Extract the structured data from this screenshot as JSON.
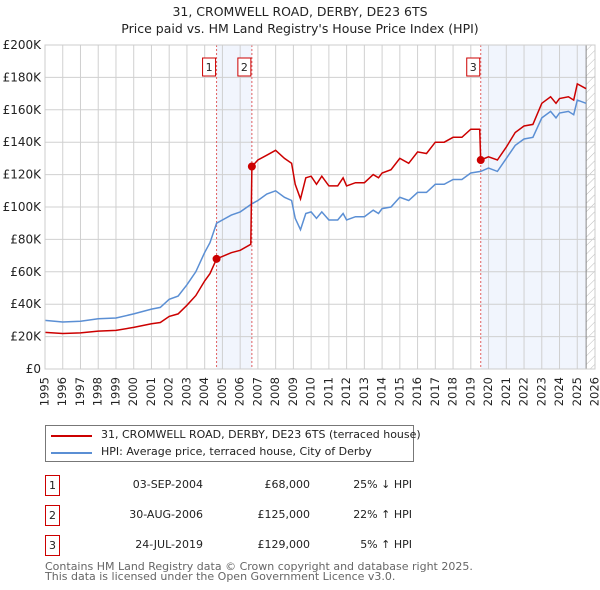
{
  "chart_data": {
    "type": "line",
    "title": "31, CROMWELL ROAD, DERBY, DE23 6TS",
    "subtitle": "Price paid vs. HM Land Registry's House Price Index (HPI)",
    "xlim": [
      1995,
      2026
    ],
    "ylim": [
      0,
      200000
    ],
    "x_ticks": [
      "1995",
      "1996",
      "1997",
      "1998",
      "1999",
      "2000",
      "2001",
      "2002",
      "2003",
      "2004",
      "2005",
      "2006",
      "2007",
      "2008",
      "2009",
      "2010",
      "2011",
      "2012",
      "2013",
      "2014",
      "2015",
      "2016",
      "2017",
      "2018",
      "2019",
      "2020",
      "2021",
      "2022",
      "2023",
      "2024",
      "2025",
      "2026"
    ],
    "y_ticks": [
      {
        "v": 0,
        "label": "£0"
      },
      {
        "v": 20000,
        "label": "£20K"
      },
      {
        "v": 40000,
        "label": "£40K"
      },
      {
        "v": 60000,
        "label": "£60K"
      },
      {
        "v": 80000,
        "label": "£80K"
      },
      {
        "v": 100000,
        "label": "£100K"
      },
      {
        "v": 120000,
        "label": "£120K"
      },
      {
        "v": 140000,
        "label": "£140K"
      },
      {
        "v": 160000,
        "label": "£160K"
      },
      {
        "v": 180000,
        "label": "£180K"
      },
      {
        "v": 200000,
        "label": "£200K"
      }
    ],
    "grid": true,
    "series": [
      {
        "name": "31, CROMWELL ROAD, DERBY, DE23 6TS (terraced house)",
        "color": "#cc0000",
        "x": [
          1995,
          1996,
          1997,
          1998,
          1999,
          2000,
          2001,
          2001.5,
          2002,
          2002.5,
          2003,
          2003.5,
          2004,
          2004.3,
          2004.67,
          2005,
          2005.5,
          2006,
          2006.6,
          2006.66,
          2007,
          2007.5,
          2008,
          2008.5,
          2008.9,
          2009.1,
          2009.4,
          2009.7,
          2010,
          2010.3,
          2010.6,
          2011,
          2011.5,
          2011.8,
          2012,
          2012.5,
          2013,
          2013.5,
          2013.8,
          2014,
          2014.5,
          2015,
          2015.5,
          2016,
          2016.5,
          2017,
          2017.5,
          2018,
          2018.5,
          2019,
          2019.5,
          2019.56,
          2020,
          2020.5,
          2021,
          2021.5,
          2022,
          2022.5,
          2023,
          2023.5,
          2023.8,
          2024,
          2024.5,
          2024.8,
          2025,
          2025.5
        ],
        "y": [
          22600,
          21900,
          22300,
          23400,
          23800,
          25700,
          27900,
          28700,
          32500,
          34000,
          39300,
          45300,
          54400,
          58900,
          68000,
          69500,
          71800,
          73300,
          77000,
          125000,
          129000,
          132000,
          135000,
          130000,
          127000,
          114000,
          105000,
          118000,
          119000,
          114000,
          119000,
          113000,
          113000,
          118000,
          113000,
          115000,
          115000,
          120000,
          118000,
          121000,
          123000,
          130000,
          127000,
          134000,
          133000,
          140000,
          140000,
          143000,
          143000,
          148000,
          148000,
          129000,
          131000,
          129000,
          137000,
          146000,
          150000,
          151000,
          164000,
          168000,
          164000,
          167000,
          168000,
          166000,
          176000,
          173000
        ]
      },
      {
        "name": "HPI: Average price, terraced house, City of Derby",
        "color": "#5b8fd4",
        "x": [
          1995,
          1996,
          1997,
          1998,
          1999,
          2000,
          2001,
          2001.5,
          2002,
          2002.5,
          2003,
          2003.5,
          2004,
          2004.3,
          2004.67,
          2005,
          2005.5,
          2006,
          2006.66,
          2007,
          2007.5,
          2008,
          2008.5,
          2008.9,
          2009.1,
          2009.4,
          2009.7,
          2010,
          2010.3,
          2010.6,
          2011,
          2011.5,
          2011.8,
          2012,
          2012.5,
          2013,
          2013.5,
          2013.8,
          2014,
          2014.5,
          2015,
          2015.5,
          2016,
          2016.5,
          2017,
          2017.5,
          2018,
          2018.5,
          2019,
          2019.56,
          2020,
          2020.5,
          2021,
          2021.5,
          2022,
          2022.5,
          2023,
          2023.5,
          2023.8,
          2024,
          2024.5,
          2024.8,
          2025,
          2025.5
        ],
        "y": [
          30000,
          29000,
          29500,
          31000,
          31500,
          34000,
          37000,
          38000,
          43000,
          45000,
          52000,
          60000,
          72000,
          78000,
          90000,
          92000,
          95000,
          97000,
          102000,
          104000,
          108000,
          110000,
          106000,
          104000,
          93000,
          86000,
          96000,
          97000,
          93000,
          97000,
          92000,
          92000,
          96000,
          92000,
          94000,
          94000,
          98000,
          96000,
          99000,
          100000,
          106000,
          104000,
          109000,
          109000,
          114000,
          114000,
          117000,
          117000,
          121000,
          122000,
          124000,
          122000,
          130000,
          138000,
          142000,
          143000,
          155000,
          159000,
          155000,
          158000,
          159000,
          157000,
          166000,
          164000
        ]
      }
    ],
    "sales": [
      {
        "n": "1",
        "x": 2004.67,
        "price": 68000
      },
      {
        "n": "2",
        "x": 2006.66,
        "price": 125000
      },
      {
        "n": "3",
        "x": 2019.56,
        "price": 129000
      }
    ],
    "shaded_ranges": [
      [
        2004.67,
        2006.66
      ],
      [
        2019.56,
        2025.5
      ]
    ],
    "data_end": 2025.5,
    "legend_position": "below"
  },
  "legend": {
    "property": "31, CROMWELL ROAD, DERBY, DE23 6TS (terraced house)",
    "hpi": "HPI: Average price, terraced house, City of Derby"
  },
  "transactions": [
    {
      "n": "1",
      "date": "03-SEP-2004",
      "price": "£68,000",
      "hpi": "25% ↓ HPI"
    },
    {
      "n": "2",
      "date": "30-AUG-2006",
      "price": "£125,000",
      "hpi": "22% ↑ HPI"
    },
    {
      "n": "3",
      "date": "24-JUL-2019",
      "price": "£129,000",
      "hpi": "5% ↑ HPI"
    }
  ],
  "footer": {
    "line1": "Contains HM Land Registry data © Crown copyright and database right 2025.",
    "line2": "This data is licensed under the Open Government Licence v3.0."
  }
}
